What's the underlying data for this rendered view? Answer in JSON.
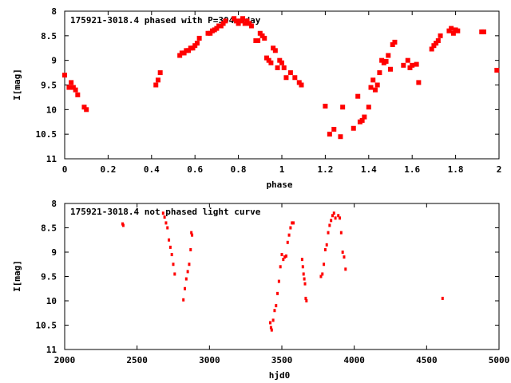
{
  "chart_data": [
    {
      "type": "scatter",
      "title": "175921-3018.4 phased with P=304.0day",
      "xlabel": "phase",
      "ylabel": "I[mag]",
      "xlim": [
        0,
        2
      ],
      "ylim": [
        11,
        8
      ],
      "y_inverted": true,
      "x_ticks": [
        0,
        0.2,
        0.4,
        0.6,
        0.8,
        1,
        1.2,
        1.4,
        1.6,
        1.8,
        2
      ],
      "x_tick_labels": [
        "0",
        "0.2",
        "0.4",
        "0.6",
        "0.8",
        "1",
        "1.2",
        "1.4",
        "1.6",
        "1.8",
        "2"
      ],
      "y_ticks": [
        8,
        8.5,
        9,
        9.5,
        10,
        10.5,
        11
      ],
      "y_tick_labels": [
        "8",
        "8.5",
        "9",
        "9.5",
        "10",
        "10.5",
        "11"
      ],
      "marker_color": "#ff0000",
      "marker": "square",
      "series": [
        {
          "x": [
            0.0,
            0.02,
            0.03,
            0.04,
            0.05,
            0.06,
            0.09,
            0.1,
            0.42,
            0.43,
            0.44,
            0.53,
            0.54,
            0.55,
            0.56,
            0.57,
            0.58,
            0.59,
            0.6,
            0.61,
            0.62,
            0.66,
            0.67,
            0.68,
            0.69,
            0.7,
            0.71,
            0.72,
            0.73,
            0.74,
            0.78,
            0.79,
            0.8,
            0.81,
            0.82,
            0.83,
            0.84,
            0.85,
            0.86,
            0.88,
            0.89,
            0.9,
            0.91,
            0.92,
            0.93,
            0.94,
            0.95,
            0.96,
            0.97,
            0.98,
            0.99,
            1.0,
            1.01,
            1.02,
            1.04,
            1.06,
            1.08,
            1.09,
            1.2,
            1.22,
            1.24,
            1.27,
            1.28,
            1.33,
            1.35,
            1.36,
            1.37,
            1.38,
            1.4,
            1.41,
            1.42,
            1.43,
            1.44,
            1.45,
            1.46,
            1.47,
            1.48,
            1.49,
            1.5,
            1.51,
            1.52,
            1.56,
            1.58,
            1.59,
            1.6,
            1.62,
            1.63,
            1.69,
            1.7,
            1.71,
            1.72,
            1.73,
            1.77,
            1.78,
            1.79,
            1.8,
            1.81,
            1.92,
            1.93,
            1.99
          ],
          "y": [
            9.3,
            9.55,
            9.45,
            9.55,
            9.6,
            9.7,
            9.95,
            10.0,
            9.5,
            9.4,
            9.25,
            8.9,
            8.85,
            8.85,
            8.8,
            8.8,
            8.75,
            8.75,
            8.7,
            8.65,
            8.55,
            8.45,
            8.45,
            8.4,
            8.38,
            8.35,
            8.3,
            8.3,
            8.25,
            8.2,
            8.15,
            8.2,
            8.25,
            8.2,
            8.15,
            8.25,
            8.2,
            8.25,
            8.3,
            8.6,
            8.6,
            8.45,
            8.5,
            8.55,
            8.95,
            9.0,
            9.05,
            8.75,
            8.8,
            9.15,
            9.0,
            9.05,
            9.15,
            9.35,
            9.25,
            9.35,
            9.45,
            9.5,
            9.93,
            10.5,
            10.4,
            10.55,
            9.95,
            10.38,
            9.73,
            10.25,
            10.22,
            10.15,
            9.95,
            9.55,
            9.4,
            9.6,
            9.5,
            9.25,
            9.0,
            9.05,
            9.02,
            8.9,
            9.18,
            8.68,
            8.63,
            9.1,
            9.0,
            9.15,
            9.1,
            9.08,
            9.45,
            8.77,
            8.7,
            8.65,
            8.6,
            8.5,
            8.4,
            8.35,
            8.45,
            8.38,
            8.4,
            8.42,
            8.42,
            9.2
          ]
        }
      ]
    },
    {
      "type": "scatter",
      "title": "175921-3018.4 not phased light curve",
      "xlabel": "hjd0",
      "ylabel": "I[mag]",
      "xlim": [
        2000,
        5000
      ],
      "ylim": [
        11,
        8
      ],
      "y_inverted": true,
      "x_ticks": [
        2000,
        2500,
        3000,
        3500,
        4000,
        4500,
        5000
      ],
      "x_tick_labels": [
        "2000",
        "2500",
        "3000",
        "3500",
        "4000",
        "4500",
        "5000"
      ],
      "y_ticks": [
        8,
        8.5,
        9,
        9.5,
        10,
        10.5,
        11
      ],
      "y_tick_labels": [
        "8",
        "8.5",
        "9",
        "9.5",
        "10",
        "10.5",
        "11"
      ],
      "marker_color": "#ff0000",
      "marker": "dot",
      "series": [
        {
          "x": [
            2400,
            2405,
            2680,
            2690,
            2700,
            2710,
            2720,
            2730,
            2740,
            2750,
            2760,
            2820,
            2830,
            2840,
            2850,
            2860,
            2870,
            2875,
            2880,
            3420,
            3425,
            3430,
            3440,
            3450,
            3460,
            3470,
            3480,
            3490,
            3500,
            3510,
            3520,
            3530,
            3540,
            3550,
            3560,
            3570,
            3580,
            3640,
            3645,
            3650,
            3655,
            3660,
            3665,
            3670,
            3770,
            3780,
            3790,
            3800,
            3810,
            3820,
            3830,
            3840,
            3850,
            3860,
            3870,
            3890,
            3900,
            3910,
            3920,
            3930,
            3940,
            4610
          ],
          "y": [
            8.42,
            8.45,
            8.2,
            8.28,
            8.4,
            8.5,
            8.75,
            8.9,
            9.05,
            9.25,
            9.45,
            9.98,
            9.75,
            9.55,
            9.4,
            9.25,
            8.95,
            8.6,
            8.65,
            10.45,
            10.55,
            10.6,
            10.4,
            10.2,
            10.1,
            9.85,
            9.6,
            9.3,
            9.05,
            9.15,
            9.1,
            9.08,
            8.8,
            8.65,
            8.5,
            8.4,
            8.4,
            9.15,
            9.3,
            9.45,
            9.55,
            9.65,
            9.95,
            10.0,
            9.5,
            9.45,
            9.25,
            8.95,
            8.85,
            8.6,
            8.45,
            8.35,
            8.25,
            8.2,
            8.3,
            8.25,
            8.3,
            8.6,
            9.0,
            9.1,
            9.35,
            9.95
          ]
        }
      ]
    }
  ]
}
